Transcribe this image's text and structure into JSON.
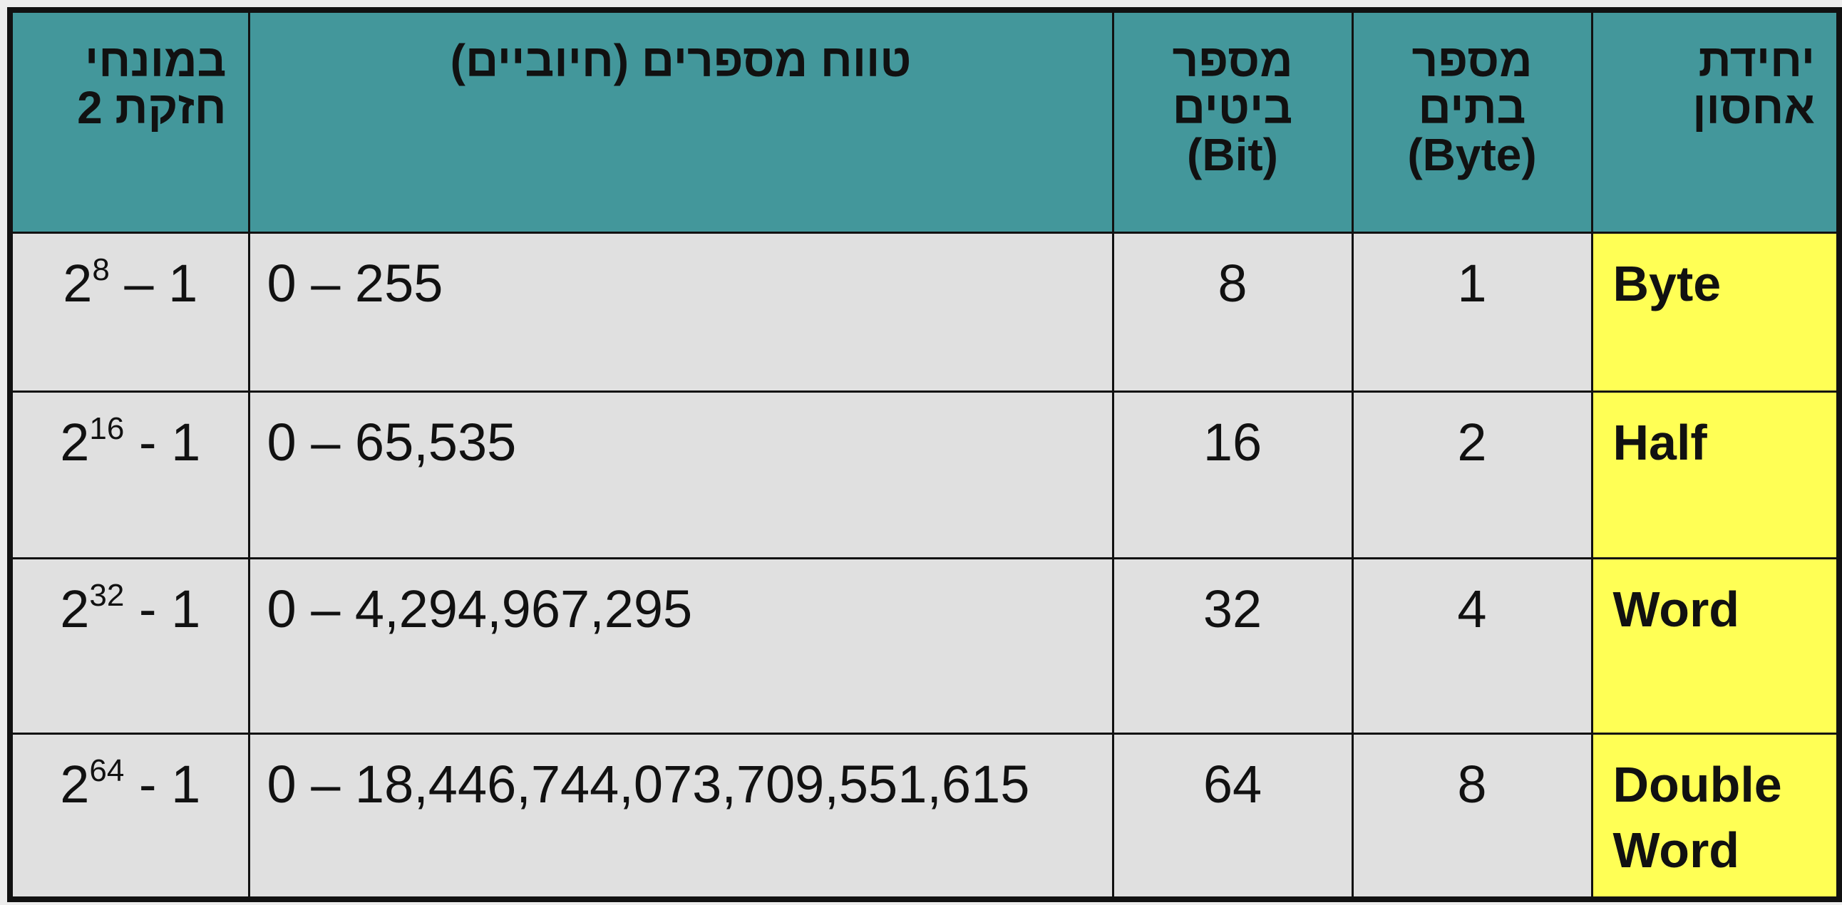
{
  "header": {
    "power": [
      "במונחי",
      "חזקת 2"
    ],
    "range": "טווח מספרים (חיוביים)",
    "bits": [
      "מספר",
      "ביטים",
      "(Bit)"
    ],
    "bytes": [
      "מספר",
      "בתים",
      "(Byte)"
    ],
    "unit": [
      "יחידת",
      "אחסון"
    ]
  },
  "rows": [
    {
      "power_base": "2",
      "power_exp": "8",
      "power_tail": " – 1",
      "range": "0 – 255",
      "bits": "8",
      "bytes": "1",
      "unit": [
        "Byte"
      ]
    },
    {
      "power_base": "2",
      "power_exp": "16",
      "power_tail": " - 1",
      "range": "0 – 65,535",
      "bits": "16",
      "bytes": "2",
      "unit": [
        "Half"
      ]
    },
    {
      "power_base": "2",
      "power_exp": "32",
      "power_tail": " - 1",
      "range": "0 – 4,294,967,295",
      "bits": "32",
      "bytes": "4",
      "unit": [
        "Word"
      ]
    },
    {
      "power_base": "2",
      "power_exp": "64",
      "power_tail": " - 1",
      "range": "0 – 18,446,744,073,709,551,615",
      "bits": "64",
      "bytes": "8",
      "unit": [
        "Double",
        "Word"
      ]
    }
  ],
  "colors": {
    "header_bg": "#43979b",
    "unit_bg": "#ffff55",
    "body_bg": "#e0e0e0",
    "border": "#111111"
  }
}
